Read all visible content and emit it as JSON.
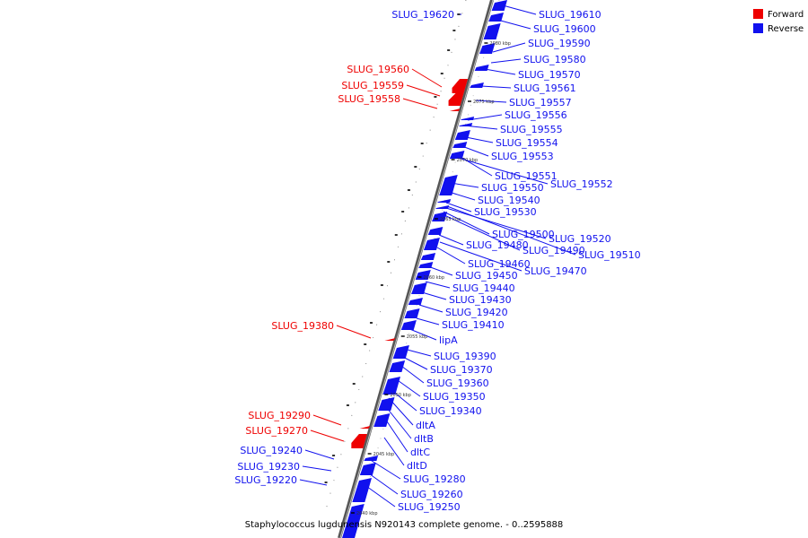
{
  "legend": {
    "forward_label": "Forward",
    "reverse_label": "Reverse",
    "forward_color": "#ee0000",
    "reverse_color": "#1111ee"
  },
  "caption": "Staphylococcus lugdunensis N920143 complete genome. - 0..2595888",
  "ticks": [
    "2080 kbp",
    "2075 kbp",
    "2070 kbp",
    "2065 kbp",
    "2060 kbp",
    "2055 kbp",
    "2050 kbp",
    "2045 kbp",
    "2040 kbp"
  ],
  "genes": {
    "forward": [
      "SLUG_19560",
      "SLUG_19559",
      "SLUG_19558",
      "SLUG_19380",
      "SLUG_19290",
      "SLUG_19270"
    ],
    "reverse_left": [
      "SLUG_19620",
      "SLUG_19240",
      "SLUG_19230",
      "SLUG_19220"
    ],
    "reverse_right": [
      "SLUG_19610",
      "SLUG_19600",
      "SLUG_19590",
      "SLUG_19580",
      "SLUG_19570",
      "SLUG_19561",
      "SLUG_19557",
      "SLUG_19556",
      "SLUG_19555",
      "SLUG_19554",
      "SLUG_19553",
      "SLUG_19551",
      "SLUG_19552",
      "SLUG_19550",
      "SLUG_19540",
      "SLUG_19530",
      "SLUG_19500",
      "SLUG_19520",
      "SLUG_19480",
      "SLUG_19490",
      "SLUG_19510",
      "SLUG_19460",
      "SLUG_19470",
      "SLUG_19450",
      "SLUG_19440",
      "SLUG_19430",
      "SLUG_19420",
      "SLUG_19410",
      "lipA",
      "SLUG_19390",
      "SLUG_19370",
      "SLUG_19360",
      "SLUG_19350",
      "SLUG_19340",
      "dltA",
      "dltB",
      "dltC",
      "dltD",
      "SLUG_19280",
      "SLUG_19260",
      "SLUG_19250"
    ]
  }
}
